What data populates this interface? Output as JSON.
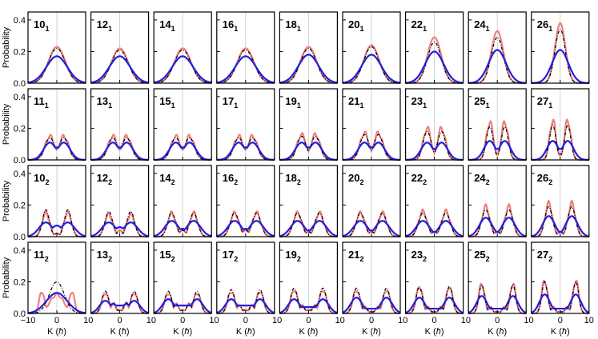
{
  "chart_data": {
    "type": "line",
    "layout": "grid",
    "grid": {
      "rows": 4,
      "cols": 9
    },
    "ylabel": "Probability",
    "xlabel_text": "K (",
    "xlabel_unit": "ħ",
    "xlabel_close": ")",
    "xlim": [
      -10,
      10
    ],
    "ylim": [
      0,
      0.45
    ],
    "xticks": [
      -10,
      0,
      10
    ],
    "yticks": [
      0.0,
      0.2,
      0.4
    ],
    "ytick_labels": [
      "0.0",
      "0.2",
      "0.4"
    ],
    "xtick_labels": [
      "−10",
      "0",
      "10",
      "0",
      "10",
      "0",
      "10",
      "0",
      "10",
      "0",
      "10",
      "0",
      "10",
      "0",
      "10",
      "0",
      "10",
      "0",
      "10"
    ],
    "vertical_reference_line_x": 0,
    "series_styles": [
      {
        "color": "#f08080",
        "style": "solid",
        "width": 2.2
      },
      {
        "color": "#000000",
        "style": "dashdot",
        "width": 1.2
      },
      {
        "color": "#1f1fe0",
        "style": "solid",
        "width": 2.2
      }
    ],
    "panels": [
      {
        "label": "10",
        "sub": "1",
        "shape": "single",
        "pink": {
          "peak": 0.23,
          "width": 2.9
        },
        "black": {
          "peak": 0.22,
          "width": 2.9
        },
        "blue": {
          "peak": 0.17,
          "width": 3.6
        }
      },
      {
        "label": "12",
        "sub": "1",
        "shape": "single",
        "pink": {
          "peak": 0.22,
          "width": 2.9
        },
        "black": {
          "peak": 0.21,
          "width": 2.9
        },
        "blue": {
          "peak": 0.17,
          "width": 3.6
        }
      },
      {
        "label": "14",
        "sub": "1",
        "shape": "single",
        "pink": {
          "peak": 0.22,
          "width": 2.9
        },
        "black": {
          "peak": 0.21,
          "width": 2.9
        },
        "blue": {
          "peak": 0.17,
          "width": 3.6
        }
      },
      {
        "label": "16",
        "sub": "1",
        "shape": "single",
        "pink": {
          "peak": 0.22,
          "width": 2.9
        },
        "black": {
          "peak": 0.21,
          "width": 2.9
        },
        "blue": {
          "peak": 0.17,
          "width": 3.6
        }
      },
      {
        "label": "18",
        "sub": "1",
        "shape": "single",
        "pink": {
          "peak": 0.23,
          "width": 2.8
        },
        "black": {
          "peak": 0.22,
          "width": 2.8
        },
        "blue": {
          "peak": 0.18,
          "width": 3.5
        }
      },
      {
        "label": "20",
        "sub": "1",
        "shape": "single",
        "pink": {
          "peak": 0.24,
          "width": 2.7
        },
        "black": {
          "peak": 0.23,
          "width": 2.7
        },
        "blue": {
          "peak": 0.18,
          "width": 3.4
        }
      },
      {
        "label": "22",
        "sub": "1",
        "shape": "single",
        "pink": {
          "peak": 0.29,
          "width": 2.4
        },
        "black": {
          "peak": 0.26,
          "width": 2.4
        },
        "blue": {
          "peak": 0.2,
          "width": 3.2
        }
      },
      {
        "label": "24",
        "sub": "1",
        "shape": "single",
        "pink": {
          "peak": 0.33,
          "width": 2.1
        },
        "black": {
          "peak": 0.29,
          "width": 2.1
        },
        "blue": {
          "peak": 0.21,
          "width": 3.0
        }
      },
      {
        "label": "26",
        "sub": "1",
        "shape": "single",
        "pink": {
          "peak": 0.38,
          "width": 1.8
        },
        "black": {
          "peak": 0.34,
          "width": 1.8
        },
        "blue": {
          "peak": 0.21,
          "width": 2.8
        }
      },
      {
        "label": "11",
        "sub": "1",
        "shape": "double",
        "sep": 2.4,
        "pink": {
          "peak": 0.15,
          "dip": 0.06,
          "width": 1.7
        },
        "black": {
          "peak": 0.14,
          "dip": 0.07,
          "width": 1.7
        },
        "blue": {
          "peak": 0.11,
          "dip": 0.08,
          "width": 2.2
        }
      },
      {
        "label": "13",
        "sub": "1",
        "shape": "double",
        "sep": 2.4,
        "pink": {
          "peak": 0.15,
          "dip": 0.06,
          "width": 1.7
        },
        "black": {
          "peak": 0.14,
          "dip": 0.07,
          "width": 1.7
        },
        "blue": {
          "peak": 0.11,
          "dip": 0.08,
          "width": 2.2
        }
      },
      {
        "label": "15",
        "sub": "1",
        "shape": "double",
        "sep": 2.4,
        "pink": {
          "peak": 0.15,
          "dip": 0.06,
          "width": 1.7
        },
        "black": {
          "peak": 0.14,
          "dip": 0.07,
          "width": 1.7
        },
        "blue": {
          "peak": 0.11,
          "dip": 0.08,
          "width": 2.2
        }
      },
      {
        "label": "17",
        "sub": "1",
        "shape": "double",
        "sep": 2.4,
        "pink": {
          "peak": 0.15,
          "dip": 0.06,
          "width": 1.7
        },
        "black": {
          "peak": 0.14,
          "dip": 0.07,
          "width": 1.7
        },
        "blue": {
          "peak": 0.11,
          "dip": 0.08,
          "width": 2.2
        }
      },
      {
        "label": "19",
        "sub": "1",
        "shape": "double",
        "sep": 2.4,
        "pink": {
          "peak": 0.16,
          "dip": 0.05,
          "width": 1.6
        },
        "black": {
          "peak": 0.15,
          "dip": 0.06,
          "width": 1.6
        },
        "blue": {
          "peak": 0.11,
          "dip": 0.08,
          "width": 2.2
        }
      },
      {
        "label": "21",
        "sub": "1",
        "shape": "double",
        "sep": 2.4,
        "pink": {
          "peak": 0.17,
          "dip": 0.05,
          "width": 1.6
        },
        "black": {
          "peak": 0.16,
          "dip": 0.06,
          "width": 1.6
        },
        "blue": {
          "peak": 0.11,
          "dip": 0.08,
          "width": 2.2
        }
      },
      {
        "label": "23",
        "sub": "1",
        "shape": "double",
        "sep": 2.5,
        "pink": {
          "peak": 0.2,
          "dip": 0.04,
          "width": 1.4
        },
        "black": {
          "peak": 0.18,
          "dip": 0.05,
          "width": 1.4
        },
        "blue": {
          "peak": 0.11,
          "dip": 0.07,
          "width": 2.1
        }
      },
      {
        "label": "25",
        "sub": "1",
        "shape": "double",
        "sep": 2.6,
        "pink": {
          "peak": 0.24,
          "dip": 0.03,
          "width": 1.2
        },
        "black": {
          "peak": 0.21,
          "dip": 0.04,
          "width": 1.2
        },
        "blue": {
          "peak": 0.12,
          "dip": 0.07,
          "width": 2.0
        }
      },
      {
        "label": "27",
        "sub": "1",
        "shape": "double",
        "sep": 2.6,
        "pink": {
          "peak": 0.25,
          "dip": 0.03,
          "width": 1.1
        },
        "black": {
          "peak": 0.22,
          "dip": 0.04,
          "width": 1.1
        },
        "blue": {
          "peak": 0.12,
          "dip": 0.07,
          "width": 2.0
        }
      },
      {
        "label": "10",
        "sub": "2",
        "shape": "double",
        "sep": 3.8,
        "pink": {
          "peak": 0.15,
          "dip": 0.02,
          "width": 1.3
        },
        "black": {
          "peak": 0.17,
          "dip": 0.02,
          "width": 1.2
        },
        "blue": {
          "peak": 0.09,
          "dip": 0.07,
          "width": 2.4
        }
      },
      {
        "label": "12",
        "sub": "2",
        "shape": "double",
        "sep": 3.8,
        "pink": {
          "peak": 0.14,
          "dip": 0.04,
          "width": 1.4
        },
        "black": {
          "peak": 0.16,
          "dip": 0.03,
          "width": 1.3
        },
        "blue": {
          "peak": 0.09,
          "dip": 0.06,
          "width": 2.4
        }
      },
      {
        "label": "14",
        "sub": "2",
        "shape": "double",
        "sep": 3.8,
        "pink": {
          "peak": 0.15,
          "dip": 0.04,
          "width": 1.4
        },
        "black": {
          "peak": 0.15,
          "dip": 0.04,
          "width": 1.4
        },
        "blue": {
          "peak": 0.1,
          "dip": 0.05,
          "width": 2.4
        }
      },
      {
        "label": "16",
        "sub": "2",
        "shape": "double",
        "sep": 3.8,
        "pink": {
          "peak": 0.15,
          "dip": 0.04,
          "width": 1.5
        },
        "black": {
          "peak": 0.15,
          "dip": 0.04,
          "width": 1.5
        },
        "blue": {
          "peak": 0.1,
          "dip": 0.05,
          "width": 2.4
        }
      },
      {
        "label": "18",
        "sub": "2",
        "shape": "double",
        "sep": 3.8,
        "pink": {
          "peak": 0.15,
          "dip": 0.03,
          "width": 1.5
        },
        "black": {
          "peak": 0.15,
          "dip": 0.03,
          "width": 1.5
        },
        "blue": {
          "peak": 0.1,
          "dip": 0.04,
          "width": 2.4
        }
      },
      {
        "label": "20",
        "sub": "2",
        "shape": "double",
        "sep": 3.8,
        "pink": {
          "peak": 0.15,
          "dip": 0.03,
          "width": 1.5
        },
        "black": {
          "peak": 0.15,
          "dip": 0.03,
          "width": 1.5
        },
        "blue": {
          "peak": 0.1,
          "dip": 0.04,
          "width": 2.4
        }
      },
      {
        "label": "22",
        "sub": "2",
        "shape": "double",
        "sep": 4.0,
        "pink": {
          "peak": 0.16,
          "dip": 0.03,
          "width": 1.5
        },
        "black": {
          "peak": 0.15,
          "dip": 0.03,
          "width": 1.5
        },
        "blue": {
          "peak": 0.1,
          "dip": 0.03,
          "width": 2.3
        }
      },
      {
        "label": "24",
        "sub": "2",
        "shape": "double",
        "sep": 4.0,
        "pink": {
          "peak": 0.19,
          "dip": 0.03,
          "width": 1.4
        },
        "black": {
          "peak": 0.17,
          "dip": 0.03,
          "width": 1.4
        },
        "blue": {
          "peak": 0.12,
          "dip": 0.03,
          "width": 2.2
        }
      },
      {
        "label": "26",
        "sub": "2",
        "shape": "double",
        "sep": 4.0,
        "pink": {
          "peak": 0.21,
          "dip": 0.03,
          "width": 1.3
        },
        "black": {
          "peak": 0.19,
          "dip": 0.03,
          "width": 1.3
        },
        "blue": {
          "peak": 0.13,
          "dip": 0.03,
          "width": 2.1
        }
      },
      {
        "label": "11",
        "sub": "2",
        "shape": "special11",
        "pink": {
          "peak": 0.14,
          "dip": 0.04,
          "width": 0.9
        },
        "black": {
          "peak": 0.2,
          "width": 2.6
        },
        "blue": {
          "peak": 0.13,
          "width": 3.6
        }
      },
      {
        "label": "13",
        "sub": "2",
        "shape": "triple",
        "sep": 5.0,
        "pink": {
          "peak": 0.13,
          "mid": 0.06,
          "dip": 0.02,
          "width": 1.2
        },
        "black": {
          "peak": 0.14,
          "mid": 0.07,
          "dip": 0.02,
          "width": 1.2
        },
        "blue": {
          "peak": 0.08,
          "mid": 0.06,
          "dip": 0.05,
          "width": 2.0
        }
      },
      {
        "label": "15",
        "sub": "2",
        "shape": "triple",
        "sep": 5.0,
        "pink": {
          "peak": 0.13,
          "mid": 0.06,
          "dip": 0.02,
          "width": 1.2
        },
        "black": {
          "peak": 0.14,
          "mid": 0.06,
          "dip": 0.02,
          "width": 1.2
        },
        "blue": {
          "peak": 0.09,
          "mid": 0.05,
          "dip": 0.05,
          "width": 2.0
        }
      },
      {
        "label": "17",
        "sub": "2",
        "shape": "triple",
        "sep": 5.0,
        "pink": {
          "peak": 0.14,
          "mid": 0.05,
          "dip": 0.02,
          "width": 1.2
        },
        "black": {
          "peak": 0.15,
          "mid": 0.05,
          "dip": 0.02,
          "width": 1.2
        },
        "blue": {
          "peak": 0.09,
          "mid": 0.05,
          "dip": 0.05,
          "width": 2.0
        }
      },
      {
        "label": "19",
        "sub": "2",
        "shape": "triple",
        "sep": 5.0,
        "pink": {
          "peak": 0.15,
          "mid": 0.05,
          "dip": 0.02,
          "width": 1.2
        },
        "black": {
          "peak": 0.16,
          "mid": 0.05,
          "dip": 0.02,
          "width": 1.2
        },
        "blue": {
          "peak": 0.09,
          "mid": 0.04,
          "dip": 0.04,
          "width": 2.0
        }
      },
      {
        "label": "21",
        "sub": "2",
        "shape": "triple",
        "sep": 5.2,
        "pink": {
          "peak": 0.15,
          "mid": 0.04,
          "dip": 0.01,
          "width": 1.2
        },
        "black": {
          "peak": 0.16,
          "mid": 0.04,
          "dip": 0.01,
          "width": 1.2
        },
        "blue": {
          "peak": 0.1,
          "mid": 0.03,
          "dip": 0.03,
          "width": 2.0
        }
      },
      {
        "label": "23",
        "sub": "2",
        "shape": "triple",
        "sep": 5.2,
        "pink": {
          "peak": 0.17,
          "mid": 0.04,
          "dip": 0.01,
          "width": 1.1
        },
        "black": {
          "peak": 0.17,
          "mid": 0.04,
          "dip": 0.01,
          "width": 1.1
        },
        "blue": {
          "peak": 0.1,
          "mid": 0.03,
          "dip": 0.03,
          "width": 1.9
        }
      },
      {
        "label": "25",
        "sub": "2",
        "shape": "triple",
        "sep": 5.4,
        "pink": {
          "peak": 0.19,
          "mid": 0.04,
          "dip": 0.01,
          "width": 1.0
        },
        "black": {
          "peak": 0.18,
          "mid": 0.04,
          "dip": 0.01,
          "width": 1.0
        },
        "blue": {
          "peak": 0.11,
          "mid": 0.03,
          "dip": 0.03,
          "width": 1.8
        }
      },
      {
        "label": "27",
        "sub": "2",
        "shape": "triple",
        "sep": 5.4,
        "pink": {
          "peak": 0.21,
          "mid": 0.04,
          "dip": 0.01,
          "width": 1.0
        },
        "black": {
          "peak": 0.2,
          "mid": 0.04,
          "dip": 0.01,
          "width": 1.0
        },
        "blue": {
          "peak": 0.12,
          "mid": 0.03,
          "dip": 0.03,
          "width": 1.8
        }
      }
    ]
  }
}
